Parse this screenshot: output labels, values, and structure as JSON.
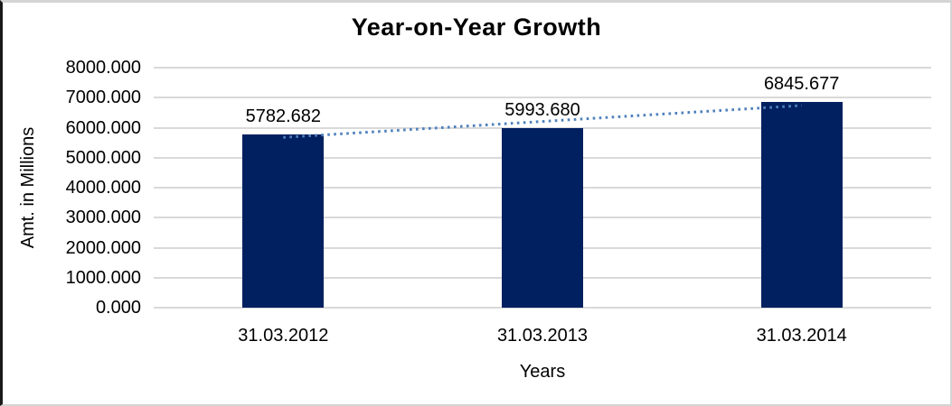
{
  "chart": {
    "title": "Year-on-Year Growth",
    "background_color": "#ffffff",
    "frame_border_dark": "#1a1a1a",
    "frame_border_light": "#d4d4d4"
  },
  "chart_data": {
    "type": "bar",
    "title": "Year-on-Year Growth",
    "xlabel": "Years",
    "ylabel": "Amt. in Millions",
    "categories": [
      "31.03.2012",
      "31.03.2013",
      "31.03.2014"
    ],
    "values": [
      5782.682,
      5993.68,
      6845.677
    ],
    "data_labels": [
      "5782.682",
      "5993.680",
      "6845.677"
    ],
    "ylim": [
      0,
      8000
    ],
    "ytick_step": 1000,
    "ytick_labels": [
      "8000.000",
      "7000.000",
      "6000.000",
      "5000.000",
      "4000.000",
      "3000.000",
      "2000.000",
      "1000.000",
      "0.000"
    ],
    "grid": true,
    "legend": "none",
    "bar_color": "#002060",
    "gridline_color": "#d9d9d9",
    "text_color": "#000000",
    "trendline": {
      "type": "linear",
      "style": "dotted",
      "color": "#4f81bd"
    }
  }
}
